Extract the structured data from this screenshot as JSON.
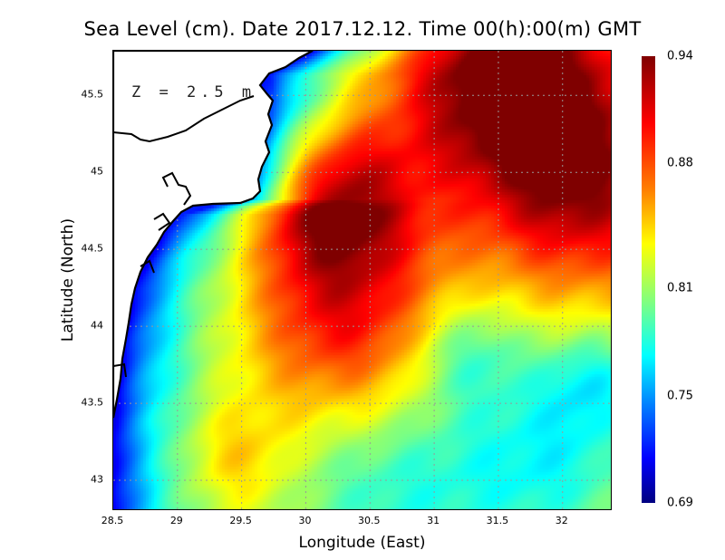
{
  "title": "Sea Level (cm). Date 2017.12.12. Time 00(h):00(m) GMT",
  "depth_label": "Z = 2.5 m",
  "x_axis": {
    "label": "Longitude (East)",
    "ticks": [
      "28.5",
      "29",
      "29.5",
      "30",
      "30.5",
      "31",
      "31.5",
      "32"
    ],
    "range": [
      28.5,
      32.39
    ]
  },
  "y_axis": {
    "label": "Latitude (North)",
    "ticks": [
      "45.5",
      "45",
      "44.5",
      "44",
      "43.5",
      "43"
    ],
    "range": [
      42.8,
      45.79
    ]
  },
  "colorbar": {
    "ticks": [
      "0.94",
      "0.88",
      "0.81",
      "0.75",
      "0.69"
    ],
    "min": 0.69,
    "max": 0.94
  },
  "colors": {
    "land": "#ffffff",
    "coast": "#000000",
    "grid": "#999999"
  }
}
